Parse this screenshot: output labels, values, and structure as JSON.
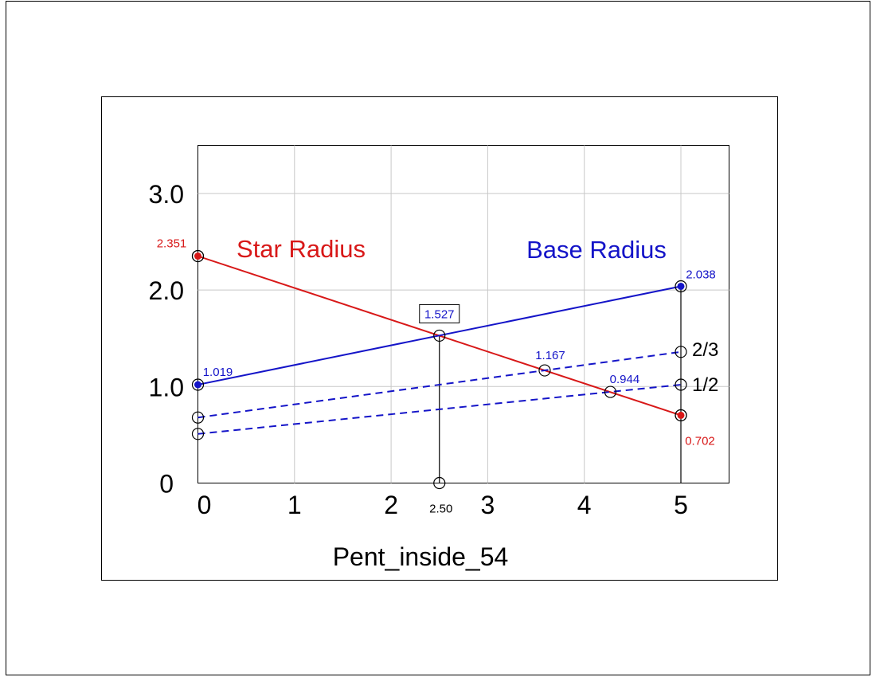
{
  "colors": {
    "star": "#d81818",
    "base": "#1414c8",
    "grid": "#c8c8c8",
    "black": "#000000"
  },
  "chart_data": {
    "type": "line",
    "title": "",
    "xlabel": "Pent_inside_54",
    "ylabel": "",
    "xlim": [
      0,
      5.5
    ],
    "ylim": [
      0,
      3.5
    ],
    "x_ticks": [
      0,
      1,
      2,
      3,
      4,
      5
    ],
    "x_tick_labels": [
      "0",
      "1",
      "2",
      "3",
      "4",
      "5"
    ],
    "y_ticks": [
      0,
      1,
      2,
      3
    ],
    "y_tick_labels": [
      "0",
      "1.0",
      "2.0",
      "3.0"
    ],
    "grid": true,
    "series": [
      {
        "name": "Star Radius",
        "color": "#d81818",
        "style": "solid",
        "points": [
          {
            "x": 0,
            "y": 2.351
          },
          {
            "x": 5,
            "y": 0.702
          }
        ]
      },
      {
        "name": "Base Radius",
        "color": "#1414c8",
        "style": "solid",
        "points": [
          {
            "x": 0,
            "y": 1.019
          },
          {
            "x": 5,
            "y": 2.038
          }
        ]
      },
      {
        "name": "2/3",
        "color": "#1414c8",
        "style": "dashed",
        "points": [
          {
            "x": 0,
            "y": 0.679
          },
          {
            "x": 5,
            "y": 1.359
          }
        ]
      },
      {
        "name": "1/2",
        "color": "#1414c8",
        "style": "dashed",
        "points": [
          {
            "x": 0,
            "y": 0.509
          },
          {
            "x": 5,
            "y": 1.019
          }
        ]
      }
    ],
    "vertical_markers": [
      {
        "x": 2.5,
        "y_from": 0,
        "y_to": 1.527
      },
      {
        "x": 5,
        "y_from": 0,
        "y_to": 2.038
      }
    ],
    "open_points": [
      {
        "x": 0,
        "y": 2.351
      },
      {
        "x": 0,
        "y": 0.679
      },
      {
        "x": 0,
        "y": 0.509
      },
      {
        "x": 2.5,
        "y": 1.527
      },
      {
        "x": 2.5,
        "y": 0
      },
      {
        "x": 3.59,
        "y": 1.167
      },
      {
        "x": 4.27,
        "y": 0.944
      },
      {
        "x": 5,
        "y": 1.359
      },
      {
        "x": 5,
        "y": 1.019
      },
      {
        "x": 5,
        "y": 0.702
      }
    ],
    "filled_points": [
      {
        "x": 0,
        "y": 2.351,
        "color": "#d81818"
      },
      {
        "x": 5,
        "y": 0.702,
        "color": "#d81818"
      },
      {
        "x": 0,
        "y": 1.019,
        "color": "#1414c8"
      },
      {
        "x": 5,
        "y": 2.038,
        "color": "#1414c8"
      }
    ],
    "series_labels": [
      {
        "text": "Star Radius",
        "color": "#d81818"
      },
      {
        "text": "Base Radius",
        "color": "#1414c8"
      },
      {
        "text": "2/3",
        "color": "#000000"
      },
      {
        "text": "1/2",
        "color": "#000000"
      }
    ],
    "value_labels": [
      {
        "text": "2.351",
        "color": "#d81818",
        "x": 0,
        "y": 2.351
      },
      {
        "text": "1.019",
        "color": "#1414c8",
        "x": 0,
        "y": 1.019
      },
      {
        "text": "1.527",
        "color": "#1414c8",
        "x": 2.5,
        "y": 1.527,
        "boxed": true
      },
      {
        "text": "1.167",
        "color": "#1414c8",
        "x": 3.59,
        "y": 1.167
      },
      {
        "text": "0.944",
        "color": "#1414c8",
        "x": 4.27,
        "y": 0.944
      },
      {
        "text": "2.038",
        "color": "#1414c8",
        "x": 5,
        "y": 2.038
      },
      {
        "text": "0.702",
        "color": "#d81818",
        "x": 5,
        "y": 0.702
      },
      {
        "text": "2.50",
        "color": "#000000",
        "x": 2.5,
        "y": 0
      }
    ]
  }
}
